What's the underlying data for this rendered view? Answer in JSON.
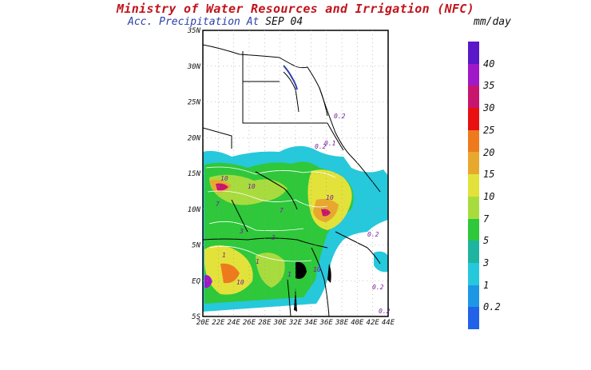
{
  "header": {
    "title": "Ministry of Water Resources and Irrigation (NFC)",
    "subtitle_label": "Acc. Precipitation",
    "subtitle_at": "At",
    "subtitle_date": "SEP 04",
    "units": "mm/day"
  },
  "map": {
    "lat_labels": [
      "35N",
      "30N",
      "25N",
      "20N",
      "15N",
      "10N",
      "5N",
      "EQ",
      "5S"
    ],
    "lon_labels": [
      "20E",
      "22E",
      "24E",
      "26E",
      "28E",
      "30E",
      "32E",
      "34E",
      "36E",
      "38E",
      "40E",
      "42E",
      "44E"
    ],
    "contour_labels": [
      "0.2",
      "0.2",
      "0.1",
      "10",
      "10",
      "10",
      "7",
      "7",
      "3",
      "3",
      "1",
      "1",
      "0.2",
      "0.2",
      "10",
      "10",
      "1",
      "0.2"
    ]
  },
  "legend": {
    "levels": [
      "40",
      "35",
      "30",
      "25",
      "20",
      "15",
      "10",
      "7",
      "5",
      "3",
      "1",
      "0.2"
    ],
    "colors": [
      "#5a18c8",
      "#a019c8",
      "#c8166e",
      "#e81010",
      "#ee7a1e",
      "#e8a82e",
      "#e2e23a",
      "#a8dc3e",
      "#2ec83a",
      "#1eb4a0",
      "#26c8dc",
      "#1e96e6",
      "#2262e8"
    ]
  }
}
